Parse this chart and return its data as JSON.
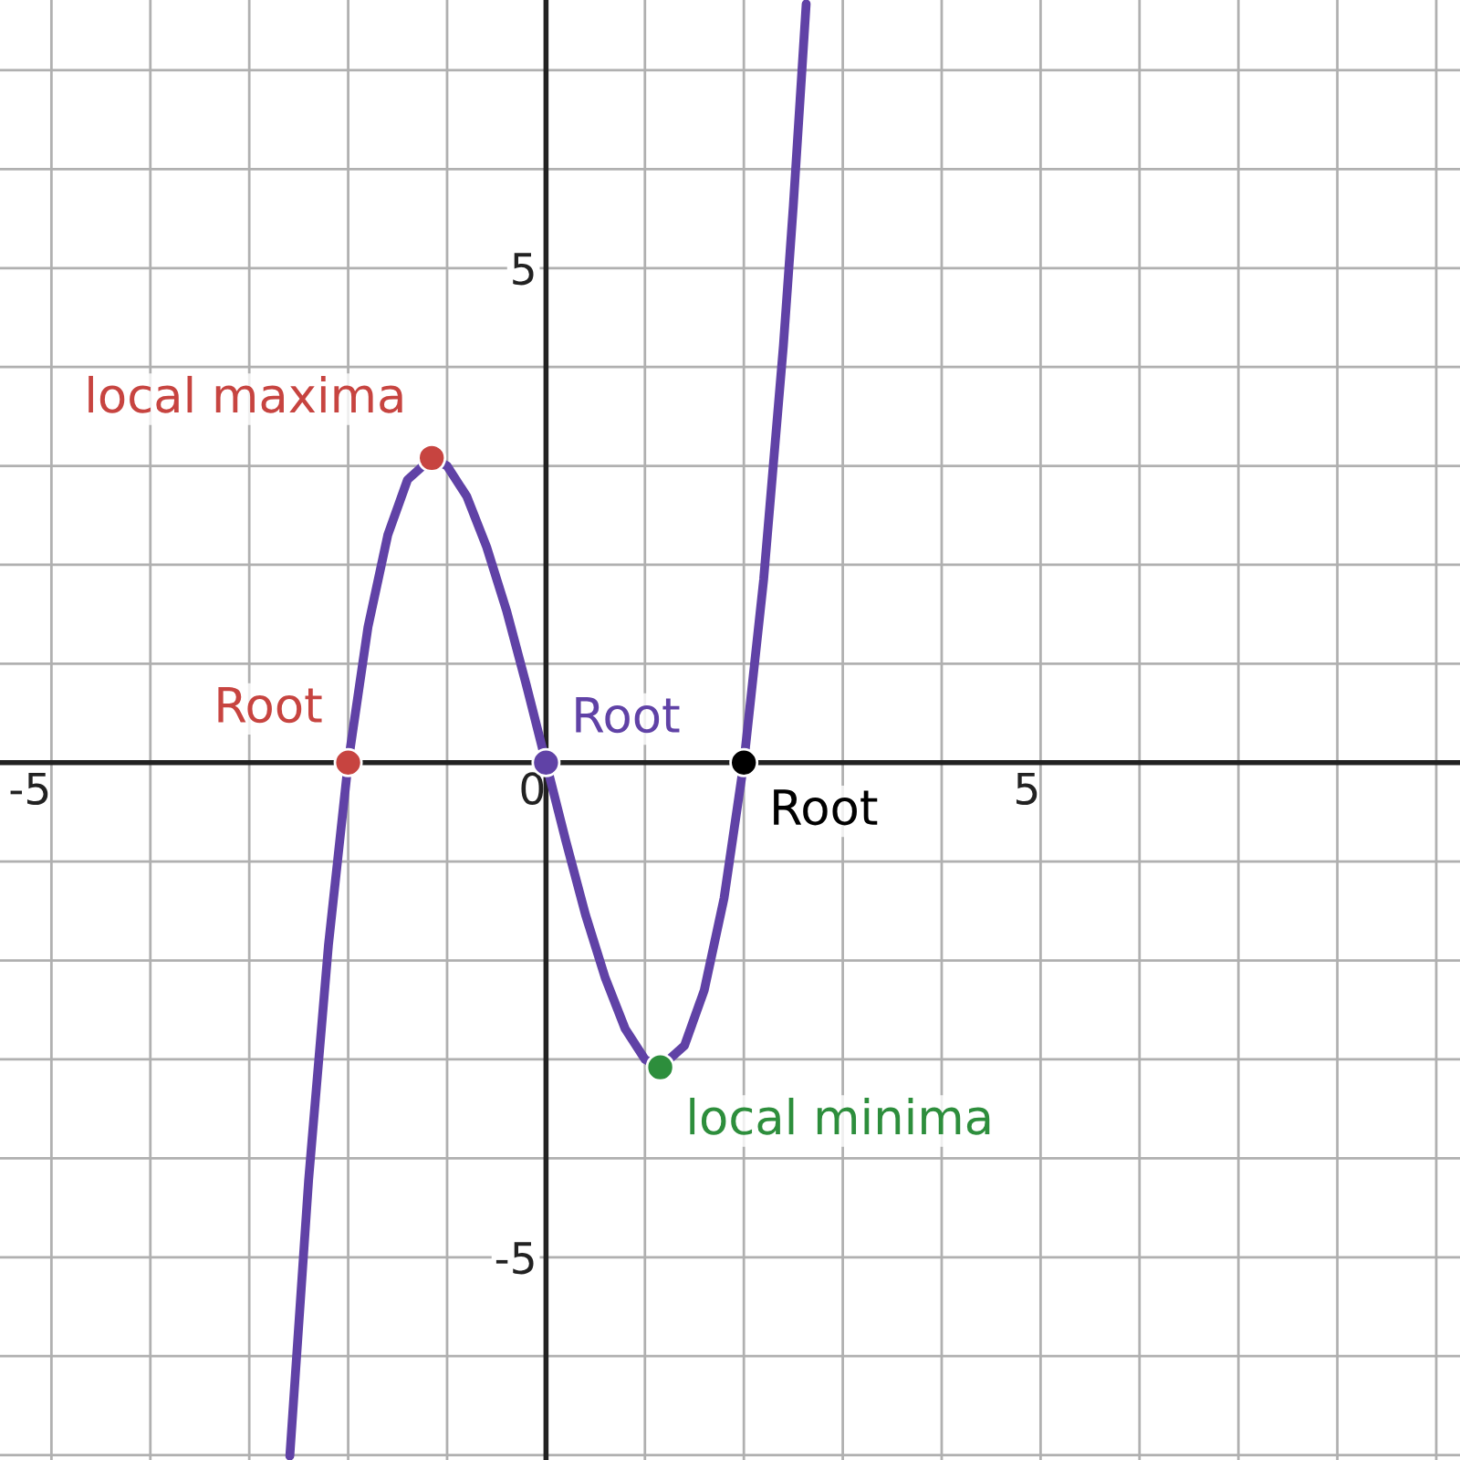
{
  "chart_data": {
    "type": "line",
    "xlim": [
      -5.52,
      9.24
    ],
    "ylim": [
      -7.05,
      7.71
    ],
    "xticks": [
      {
        "value": -5,
        "label": "-5"
      },
      {
        "value": -4,
        "label": null
      },
      {
        "value": -3,
        "label": null
      },
      {
        "value": -2,
        "label": null
      },
      {
        "value": -1,
        "label": null
      },
      {
        "value": 0,
        "label": "0"
      },
      {
        "value": 1,
        "label": null
      },
      {
        "value": 2,
        "label": null
      },
      {
        "value": 3,
        "label": null
      },
      {
        "value": 4,
        "label": null
      },
      {
        "value": 5,
        "label": "5"
      },
      {
        "value": 6,
        "label": null
      },
      {
        "value": 7,
        "label": null
      },
      {
        "value": 8,
        "label": null
      },
      {
        "value": 9,
        "label": null
      }
    ],
    "yticks": [
      {
        "value": -7,
        "label": null
      },
      {
        "value": -6,
        "label": null
      },
      {
        "value": -5,
        "label": "-5"
      },
      {
        "value": -4,
        "label": null
      },
      {
        "value": -3,
        "label": null
      },
      {
        "value": -2,
        "label": null
      },
      {
        "value": -1,
        "label": null
      },
      {
        "value": 1,
        "label": null
      },
      {
        "value": 2,
        "label": null
      },
      {
        "value": 3,
        "label": null
      },
      {
        "value": 4,
        "label": null
      },
      {
        "value": 5,
        "label": "5"
      },
      {
        "value": 6,
        "label": null
      },
      {
        "value": 7,
        "label": null
      }
    ],
    "grid": true,
    "series": [
      {
        "color": "#6042a6",
        "marker": "none",
        "x": [
          -2.59,
          -2.4,
          -2.2,
          -2.0,
          -1.8,
          -1.6,
          -1.4,
          -1.155,
          -1.0,
          -0.8,
          -0.6,
          -0.4,
          -0.2,
          0,
          0.2,
          0.4,
          0.6,
          0.8,
          1.0,
          1.155,
          1.4,
          1.6,
          1.8,
          2.0,
          2.2,
          2.4,
          2.5,
          2.63
        ],
        "values": [
          -7.01,
          -4.22,
          -1.85,
          0,
          1.37,
          2.3,
          2.86,
          3.08,
          3,
          2.69,
          2.18,
          1.54,
          0.79,
          0,
          -0.79,
          -1.54,
          -2.18,
          -2.69,
          -3,
          -3.08,
          -2.86,
          -2.3,
          -1.37,
          0,
          1.85,
          4.22,
          5.63,
          7.67
        ]
      },
      {
        "type": "scatter",
        "name": "Root",
        "color": "#c74440",
        "x": [
          -2
        ],
        "values": [
          0
        ]
      },
      {
        "type": "scatter",
        "name": "local maxima",
        "color": "#c74440",
        "x": [
          -1.155
        ],
        "values": [
          3.08
        ]
      },
      {
        "type": "scatter",
        "name": "Root",
        "color": "#6042a6",
        "x": [
          0
        ],
        "values": [
          0
        ]
      },
      {
        "type": "scatter",
        "name": "local minima",
        "color": "#2d8e3c",
        "x": [
          1.155
        ],
        "values": [
          -3.08
        ]
      },
      {
        "type": "scatter",
        "name": "Root",
        "color": "#000000",
        "x": [
          2
        ],
        "values": [
          0
        ]
      }
    ]
  }
}
